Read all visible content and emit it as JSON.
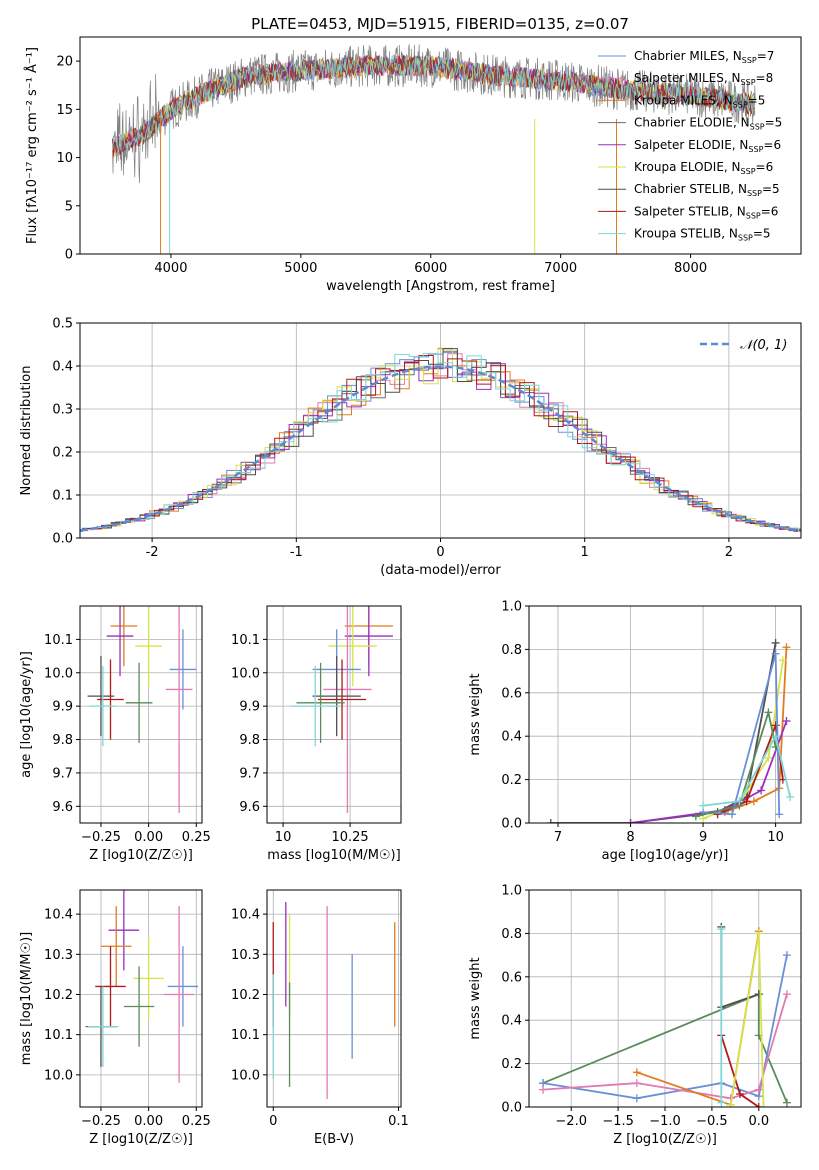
{
  "title": "PLATE=0453, MJD=51915, FIBERID=0135, z=0.07",
  "colors": {
    "Chabrier MILES": "#6a8fd8",
    "Salpeter MILES": "#e07ab2",
    "Kroupa MILES": "#e07b1e",
    "Chabrier ELODIE": "#6b6b6b",
    "Salpeter ELODIE": "#9a2fc0",
    "Kroupa ELODIE": "#d6e34a",
    "Chabrier STELIB": "#4f4f4f",
    "Salpeter STELIB": "#b01a1a",
    "Kroupa STELIB": "#7fd6d6",
    "Other green": "#5b8a5b",
    "normal": "#5b8bd6"
  },
  "chart_data": [
    {
      "id": "spectrum",
      "type": "line",
      "title": "PLATE=0453, MJD=51915, FIBERID=0135, z=0.07",
      "xlabel": "wavelength [Angstrom, rest frame]",
      "ylabel": "Flux [fλ10⁻¹⁷ erg cm⁻² s⁻¹ Å⁻¹]",
      "xlim": [
        3300,
        8850
      ],
      "ylim": [
        0,
        22.5
      ],
      "xticks": [
        4000,
        5000,
        6000,
        7000,
        8000
      ],
      "yticks": [
        0,
        5,
        10,
        15,
        20
      ],
      "legend_position": "top-right",
      "legend": [
        {
          "name": "Chabrier MILES",
          "nssp": "7"
        },
        {
          "name": "Salpeter MILES",
          "nssp": "8"
        },
        {
          "name": "Kroupa MILES",
          "nssp": "5"
        },
        {
          "name": "Chabrier ELODIE",
          "nssp": "5"
        },
        {
          "name": "Salpeter ELODIE",
          "nssp": "6"
        },
        {
          "name": "Kroupa ELODIE",
          "nssp": "6"
        },
        {
          "name": "Chabrier STELIB",
          "nssp": "5"
        },
        {
          "name": "Salpeter STELIB",
          "nssp": "6"
        },
        {
          "name": "Kroupa STELIB",
          "nssp": "5"
        }
      ],
      "continuum": [
        [
          3550,
          11
        ],
        [
          3800,
          12.5
        ],
        [
          4000,
          15
        ],
        [
          4300,
          17
        ],
        [
          4600,
          18.5
        ],
        [
          5000,
          19
        ],
        [
          5500,
          19.5
        ],
        [
          6000,
          19.5
        ],
        [
          6500,
          18.5
        ],
        [
          7000,
          18
        ],
        [
          7500,
          17
        ],
        [
          8000,
          16.5
        ],
        [
          8500,
          15.5
        ]
      ]
    },
    {
      "id": "residuals",
      "type": "histogram",
      "xlabel": "(data-model)/error",
      "ylabel": "Normed distribution",
      "xlim": [
        -2.5,
        2.5
      ],
      "ylim": [
        0,
        0.5
      ],
      "xticks": [
        -2,
        -1,
        0,
        1,
        2
      ],
      "yticks": [
        0,
        0.1,
        0.2,
        0.3,
        0.4,
        0.5
      ],
      "legend_position": "top-right",
      "legend": [
        "𝒩(0, 1)"
      ]
    },
    {
      "id": "age_vs_Z",
      "type": "scatter",
      "xlabel": "Z [log10(Z/Z☉)]",
      "ylabel": "age [log10(age/yr)]",
      "xlim": [
        -0.36,
        0.28
      ],
      "ylim": [
        9.55,
        10.2
      ],
      "xticks": [
        -0.25,
        0,
        0.25
      ],
      "xticklabels": [
        "−0.25",
        "0.00",
        "0.25"
      ],
      "yticks": [
        9.6,
        9.7,
        9.8,
        9.9,
        10.0,
        10.1
      ],
      "points": [
        {
          "series": "Kroupa MILES",
          "x": -0.13,
          "y": 10.14
        },
        {
          "series": "Salpeter ELODIE",
          "x": -0.15,
          "y": 10.11
        },
        {
          "series": "Kroupa ELODIE",
          "x": 0.0,
          "y": 10.08
        },
        {
          "series": "Chabrier MILES",
          "x": 0.18,
          "y": 10.01
        },
        {
          "series": "Salpeter MILES",
          "x": 0.16,
          "y": 9.95
        },
        {
          "series": "Chabrier STELIB",
          "x": -0.25,
          "y": 9.93
        },
        {
          "series": "Salpeter STELIB",
          "x": -0.2,
          "y": 9.92
        },
        {
          "series": "Other green",
          "x": -0.05,
          "y": 9.91
        },
        {
          "series": "Kroupa STELIB",
          "x": -0.24,
          "y": 9.9
        }
      ]
    },
    {
      "id": "age_vs_mass",
      "type": "scatter",
      "xlabel": "mass [log10(M/M☉)]",
      "ylabel": "",
      "xlim": [
        9.94,
        10.44
      ],
      "ylim": [
        9.55,
        10.2
      ],
      "xticks": [
        10.0,
        10.25
      ],
      "yticks": [
        9.6,
        9.7,
        9.8,
        9.9,
        10.0,
        10.1
      ],
      "points": [
        {
          "series": "Kroupa MILES",
          "x": 10.32,
          "y": 10.14
        },
        {
          "series": "Salpeter ELODIE",
          "x": 10.32,
          "y": 10.11
        },
        {
          "series": "Kroupa ELODIE",
          "x": 10.26,
          "y": 10.08
        },
        {
          "series": "Chabrier MILES",
          "x": 10.2,
          "y": 10.01
        },
        {
          "series": "Salpeter MILES",
          "x": 10.24,
          "y": 9.95
        },
        {
          "series": "Chabrier STELIB",
          "x": 10.2,
          "y": 9.93
        },
        {
          "series": "Salpeter STELIB",
          "x": 10.22,
          "y": 9.92
        },
        {
          "series": "Other green",
          "x": 10.14,
          "y": 9.91
        },
        {
          "series": "Kroupa STELIB",
          "x": 10.12,
          "y": 9.9
        }
      ]
    },
    {
      "id": "massweight_vs_age",
      "type": "line",
      "xlabel": "age [log10(age/yr)]",
      "ylabel": "mass weight",
      "xlim": [
        6.6,
        10.35
      ],
      "ylim": [
        0,
        1
      ],
      "xticks": [
        7,
        8,
        9,
        10
      ],
      "yticks": [
        0,
        0.2,
        0.4,
        0.6,
        0.8,
        1.0
      ]
    },
    {
      "id": "mass_vs_Z",
      "type": "scatter",
      "xlabel": "Z [log10(Z/Z☉)]",
      "ylabel": "mass [log10(M/M☉)]",
      "xlim": [
        -0.36,
        0.28
      ],
      "ylim": [
        9.92,
        10.46
      ],
      "xticks": [
        -0.25,
        0,
        0.25
      ],
      "xticklabels": [
        "−0.25",
        "0.00",
        "0.25"
      ],
      "yticks": [
        10.0,
        10.1,
        10.2,
        10.3,
        10.4
      ],
      "points": [
        {
          "series": "Salpeter ELODIE",
          "x": -0.13,
          "y": 10.36
        },
        {
          "series": "Kroupa MILES",
          "x": -0.17,
          "y": 10.32
        },
        {
          "series": "Kroupa ELODIE",
          "x": 0.0,
          "y": 10.24
        },
        {
          "series": "Chabrier MILES",
          "x": 0.18,
          "y": 10.22
        },
        {
          "series": "Salpeter STELIB",
          "x": -0.2,
          "y": 10.22
        },
        {
          "series": "Salpeter MILES",
          "x": 0.16,
          "y": 10.2
        },
        {
          "series": "Other green",
          "x": -0.05,
          "y": 10.17
        },
        {
          "series": "Chabrier STELIB",
          "x": -0.25,
          "y": 10.12
        },
        {
          "series": "Kroupa STELIB",
          "x": -0.24,
          "y": 10.12
        }
      ]
    },
    {
      "id": "mass_vs_EBV",
      "type": "scatter",
      "xlabel": "E(B-V)",
      "ylabel": "",
      "xlim": [
        -0.005,
        0.102
      ],
      "ylim": [
        9.92,
        10.46
      ],
      "xticks": [
        0,
        0.1
      ],
      "yticks": [
        10.0,
        10.1,
        10.2,
        10.3,
        10.4
      ],
      "points": [
        {
          "series": "Salpeter STELIB",
          "x": 0.0,
          "y": 10.25
        },
        {
          "series": "Salpeter ELODIE",
          "x": 0.01,
          "y": 10.3
        },
        {
          "series": "Kroupa ELODIE",
          "x": 0.013,
          "y": 10.27
        },
        {
          "series": "Other green",
          "x": 0.013,
          "y": 10.1
        },
        {
          "series": "Salpeter MILES",
          "x": 0.043,
          "y": 10.18
        },
        {
          "series": "Chabrier MILES",
          "x": 0.063,
          "y": 10.17
        },
        {
          "series": "Kroupa MILES",
          "x": 0.097,
          "y": 10.25
        },
        {
          "series": "Kroupa STELIB",
          "x": 0.0,
          "y": 10.12
        }
      ]
    },
    {
      "id": "massweight_vs_Z",
      "type": "line",
      "xlabel": "Z [log10(Z/Z☉)]",
      "ylabel": "mass weight",
      "xlim": [
        -2.45,
        0.45
      ],
      "ylim": [
        0,
        1
      ],
      "xticks": [
        -2.0,
        -1.5,
        -1.0,
        -0.5,
        0.0
      ],
      "xticklabels": [
        "−2.0",
        "−1.5",
        "−1.0",
        "−0.5",
        "0.0"
      ],
      "yticks": [
        0,
        0.2,
        0.4,
        0.6,
        0.8,
        1.0
      ]
    }
  ]
}
